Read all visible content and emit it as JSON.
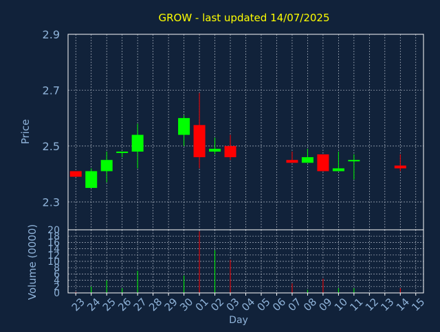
{
  "colors": {
    "background": "#11223a",
    "plot_border": "#ffffff",
    "grid": "#b0b8c4",
    "title": "#ffff00",
    "axis_text": "#8fb3d9",
    "up": "#00ff00",
    "down": "#ff0000"
  },
  "chart_data": [
    {
      "type": "candlestick",
      "title": "GROW - last updated 14/07/2025",
      "ylabel": "Price",
      "ylim": [
        2.2,
        2.9
      ],
      "yticks": [
        2.3,
        2.5,
        2.7,
        2.9
      ],
      "grid": true,
      "categories": [
        "23",
        "24",
        "25",
        "26",
        "27",
        "28",
        "29",
        "30",
        "01",
        "02",
        "03",
        "04",
        "05",
        "06",
        "07",
        "08",
        "09",
        "10",
        "11",
        "12",
        "13",
        "14",
        "15"
      ],
      "candles": [
        {
          "x": "23",
          "open": 2.41,
          "high": 2.41,
          "low": 2.39,
          "close": 2.39
        },
        {
          "x": "24",
          "open": 2.35,
          "high": 2.42,
          "low": 2.35,
          "close": 2.41
        },
        {
          "x": "25",
          "open": 2.41,
          "high": 2.48,
          "low": 2.37,
          "close": 2.45
        },
        {
          "x": "26",
          "open": 2.475,
          "high": 2.48,
          "low": 2.46,
          "close": 2.48
        },
        {
          "x": "27",
          "open": 2.48,
          "high": 2.58,
          "low": 2.42,
          "close": 2.54
        },
        {
          "x": "30",
          "open": 2.54,
          "high": 2.61,
          "low": 2.5,
          "close": 2.6
        },
        {
          "x": "01",
          "open": 2.575,
          "high": 2.69,
          "low": 2.42,
          "close": 2.46
        },
        {
          "x": "02",
          "open": 2.48,
          "high": 2.53,
          "low": 2.47,
          "close": 2.49
        },
        {
          "x": "03",
          "open": 2.5,
          "high": 2.54,
          "low": 2.45,
          "close": 2.46
        },
        {
          "x": "07",
          "open": 2.45,
          "high": 2.48,
          "low": 2.44,
          "close": 2.44
        },
        {
          "x": "08",
          "open": 2.44,
          "high": 2.49,
          "low": 2.44,
          "close": 2.46
        },
        {
          "x": "09",
          "open": 2.47,
          "high": 2.47,
          "low": 2.41,
          "close": 2.41
        },
        {
          "x": "10",
          "open": 2.41,
          "high": 2.48,
          "low": 2.41,
          "close": 2.42
        },
        {
          "x": "11",
          "open": 2.45,
          "high": 2.47,
          "low": 2.38,
          "close": 2.45
        },
        {
          "x": "14",
          "open": 2.43,
          "high": 2.47,
          "low": 2.41,
          "close": 2.42
        }
      ]
    },
    {
      "type": "bar",
      "ylabel": "Volume (0000)",
      "xlabel": "Day",
      "ylim": [
        0,
        20
      ],
      "yticks": [
        0,
        2,
        4,
        6,
        8,
        10,
        12,
        14,
        16,
        18,
        20
      ],
      "grid": true,
      "categories": [
        "23",
        "24",
        "25",
        "26",
        "27",
        "28",
        "29",
        "30",
        "01",
        "02",
        "03",
        "04",
        "05",
        "06",
        "07",
        "08",
        "09",
        "10",
        "11",
        "12",
        "13",
        "14",
        "15"
      ],
      "bars": [
        {
          "x": "23",
          "value": 0.3,
          "direction": "down"
        },
        {
          "x": "24",
          "value": 2.0,
          "direction": "up"
        },
        {
          "x": "25",
          "value": 4.0,
          "direction": "up"
        },
        {
          "x": "26",
          "value": 1.5,
          "direction": "up"
        },
        {
          "x": "27",
          "value": 7.0,
          "direction": "up"
        },
        {
          "x": "30",
          "value": 5.5,
          "direction": "up"
        },
        {
          "x": "01",
          "value": 19.5,
          "direction": "down"
        },
        {
          "x": "02",
          "value": 13.5,
          "direction": "up"
        },
        {
          "x": "03",
          "value": 10.5,
          "direction": "down"
        },
        {
          "x": "07",
          "value": 3.0,
          "direction": "down"
        },
        {
          "x": "08",
          "value": 1.0,
          "direction": "up"
        },
        {
          "x": "09",
          "value": 4.5,
          "direction": "down"
        },
        {
          "x": "10",
          "value": 1.5,
          "direction": "up"
        },
        {
          "x": "11",
          "value": 1.5,
          "direction": "up"
        },
        {
          "x": "14",
          "value": 1.5,
          "direction": "down"
        }
      ]
    }
  ]
}
